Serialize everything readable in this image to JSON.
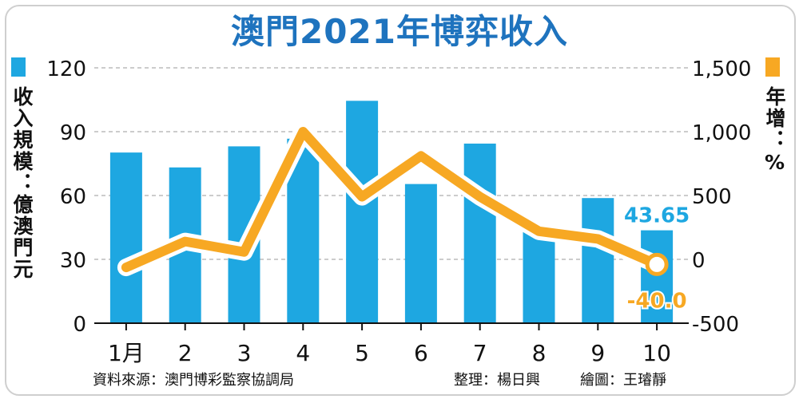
{
  "title": "澳門2021年博弈收入",
  "legend": {
    "left_label": "收入規模：億澳門元",
    "right_label": "年增：%"
  },
  "source": {
    "data_source": "資料來源：澳門博彩監察協調局",
    "compiled_by": "整理：楊日興",
    "drawn_by": "繪圖：王璿靜"
  },
  "colors": {
    "bar": "#1ea7e1",
    "line": "#f7a823",
    "title": "#1e73be"
  },
  "chart_data": {
    "type": "bar",
    "categories": [
      "1月",
      "2",
      "3",
      "4",
      "5",
      "6",
      "7",
      "8",
      "9",
      "10"
    ],
    "series": [
      {
        "values": [
          80.2,
          73.2,
          83.1,
          86.7,
          104.5,
          65.4,
          84.4,
          44.4,
          58.8,
          43.65
        ],
        "axis": "left",
        "type": "bar"
      },
      {
        "values": [
          -63,
          140,
          58,
          1000,
          490,
          810,
          490,
          220,
          160,
          -40.0
        ],
        "axis": "right",
        "type": "line"
      }
    ],
    "y_left": {
      "min": 0,
      "max": 120,
      "ticks": [
        "0",
        "30",
        "60",
        "90",
        "120"
      ]
    },
    "y_right": {
      "min": -500,
      "max": 1500,
      "ticks": [
        "-500",
        "0",
        "500",
        "1,000",
        "1,500"
      ]
    },
    "data_labels": {
      "bar_last": "43.65",
      "line_last": "-40.0"
    },
    "grid": true
  }
}
